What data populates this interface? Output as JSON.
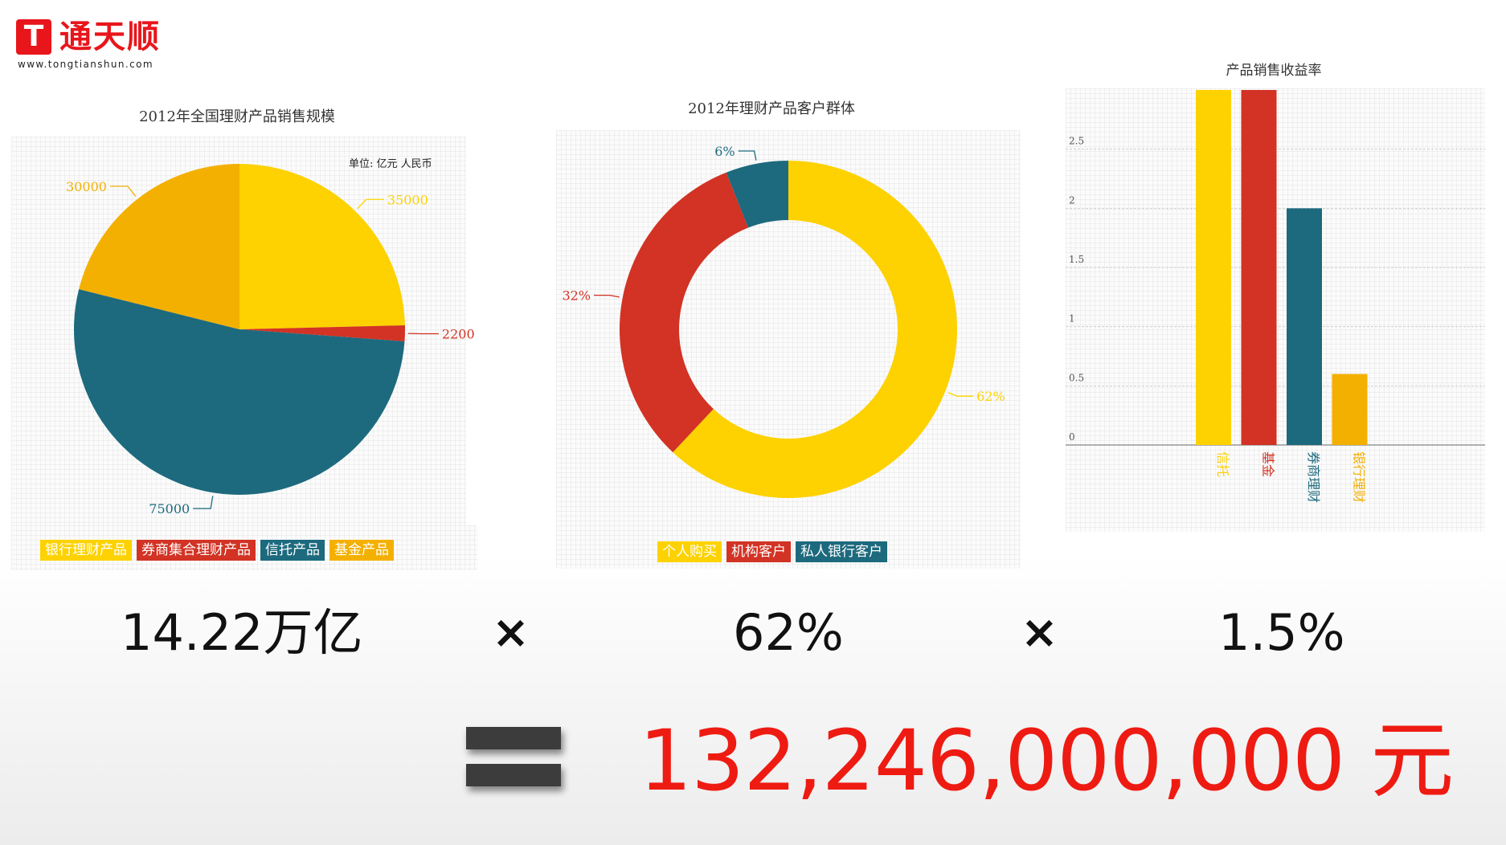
{
  "logo": {
    "mark": "T",
    "name": "通天顺",
    "url": "www.tongtianshun.com"
  },
  "colors": {
    "yellow": "#fdd200",
    "amber": "#f4b000",
    "red": "#d23324",
    "teal": "#1d6a7e",
    "result_red": "#ee1b12"
  },
  "chart_data": [
    {
      "type": "pie",
      "title": "2012年全国理财产品销售规模",
      "unit_note": "单位: 亿元 人民币",
      "labels": [
        "银行理财产品",
        "券商集合理财产品",
        "信托产品",
        "基金产品"
      ],
      "values": [
        35000,
        2200,
        75000,
        30000
      ],
      "data_labels": [
        "35000",
        "2200",
        "75000",
        "30000"
      ],
      "colors": [
        "#fdd200",
        "#d23324",
        "#1d6a7e",
        "#f4b000"
      ],
      "legend": "bottom"
    },
    {
      "type": "pie",
      "donut": true,
      "title": "2012年理财产品客户群体",
      "labels": [
        "个人购买",
        "机构客户",
        "私人银行客户"
      ],
      "values": [
        62,
        32,
        6
      ],
      "data_labels": [
        "62%",
        "32%",
        "6%"
      ],
      "colors": [
        "#fdd200",
        "#d23324",
        "#1d6a7e"
      ],
      "legend": "bottom"
    },
    {
      "type": "bar",
      "title": "产品销售收益率",
      "categories": [
        "信托",
        "基金",
        "券商理财",
        "银行理财"
      ],
      "values": [
        3,
        3,
        2,
        0.6
      ],
      "colors": [
        "#fdd200",
        "#d23324",
        "#1d6a7e",
        "#f4b000"
      ],
      "ylim": [
        0,
        3
      ],
      "yticks": [
        0,
        0.5,
        1,
        1.5,
        2,
        2.5
      ],
      "ytick_labels": [
        "0",
        "0.5",
        "1",
        "1.5",
        "2",
        "2.5"
      ],
      "grid": true
    }
  ],
  "formula": {
    "term1": "14.22万亿",
    "op1": "×",
    "term2": "62%",
    "op2": "×",
    "term3": "1.5%",
    "result": "132,246,000,000 元"
  }
}
